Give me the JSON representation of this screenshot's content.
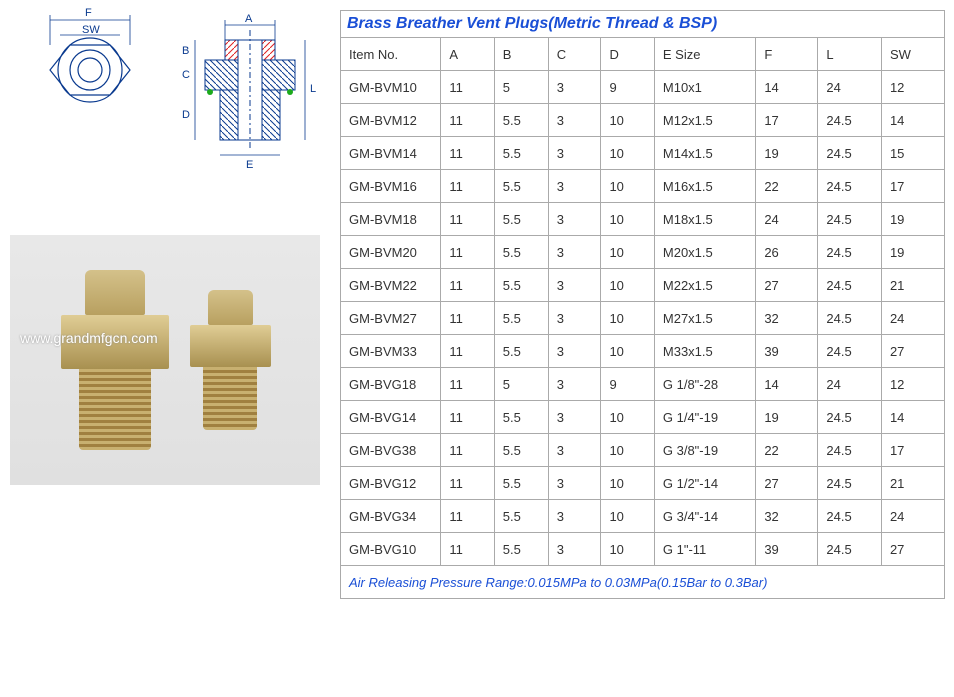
{
  "title": "Brass Breather Vent Plugs(Metric Thread & BSP)",
  "footer": "Air Releasing Pressure Range:0.015MPa to 0.03MPa(0.15Bar to 0.3Bar)",
  "watermark": "www.grandmfgcn.com",
  "diagram_labels": {
    "F": "F",
    "SW": "SW",
    "A": "A",
    "B": "B",
    "C": "C",
    "D": "D",
    "E": "E",
    "L": "L"
  },
  "table": {
    "columns": [
      "Item No.",
      "A",
      "B",
      "C",
      "D",
      "E Size",
      "F",
      "L",
      "SW"
    ],
    "col_widths": [
      "90px",
      "40px",
      "40px",
      "40px",
      "40px",
      "90px",
      "50px",
      "50px",
      "50px"
    ],
    "rows": [
      [
        "GM-BVM10",
        "11",
        "5",
        "3",
        "9",
        "M10x1",
        "14",
        "24",
        "12"
      ],
      [
        "GM-BVM12",
        "11",
        "5.5",
        "3",
        "10",
        "M12x1.5",
        "17",
        "24.5",
        "14"
      ],
      [
        "GM-BVM14",
        "11",
        "5.5",
        "3",
        "10",
        "M14x1.5",
        "19",
        "24.5",
        "15"
      ],
      [
        "GM-BVM16",
        "11",
        "5.5",
        "3",
        "10",
        "M16x1.5",
        "22",
        "24.5",
        "17"
      ],
      [
        "GM-BVM18",
        "11",
        "5.5",
        "3",
        "10",
        "M18x1.5",
        "24",
        "24.5",
        "19"
      ],
      [
        "GM-BVM20",
        "11",
        "5.5",
        "3",
        "10",
        "M20x1.5",
        "26",
        "24.5",
        "19"
      ],
      [
        "GM-BVM22",
        "11",
        "5.5",
        "3",
        "10",
        "M22x1.5",
        "27",
        "24.5",
        "21"
      ],
      [
        "GM-BVM27",
        "11",
        "5.5",
        "3",
        "10",
        "M27x1.5",
        "32",
        "24.5",
        "24"
      ],
      [
        "GM-BVM33",
        "11",
        "5.5",
        "3",
        "10",
        "M33x1.5",
        "39",
        "24.5",
        "27"
      ],
      [
        "GM-BVG18",
        "11",
        "5",
        "3",
        "9",
        "G 1/8\"-28",
        "14",
        "24",
        "12"
      ],
      [
        "GM-BVG14",
        "11",
        "5.5",
        "3",
        "10",
        "G 1/4\"-19",
        "19",
        "24.5",
        "14"
      ],
      [
        "GM-BVG38",
        "11",
        "5.5",
        "3",
        "10",
        "G 3/8\"-19",
        "22",
        "24.5",
        "17"
      ],
      [
        "GM-BVG12",
        "11",
        "5.5",
        "3",
        "10",
        "G 1/2\"-14",
        "27",
        "24.5",
        "21"
      ],
      [
        "GM-BVG34",
        "11",
        "5.5",
        "3",
        "10",
        "G 3/4\"-14",
        "32",
        "24.5",
        "24"
      ],
      [
        "GM-BVG10",
        "11",
        "5.5",
        "3",
        "10",
        "G   1\"-11",
        "39",
        "24.5",
        "27"
      ]
    ]
  },
  "colors": {
    "border": "#aaaaaa",
    "link_blue": "#1a4fd6",
    "drawing_stroke": "#0a3a8f",
    "brass_light": "#d4c18a",
    "brass_dark": "#a89050"
  }
}
